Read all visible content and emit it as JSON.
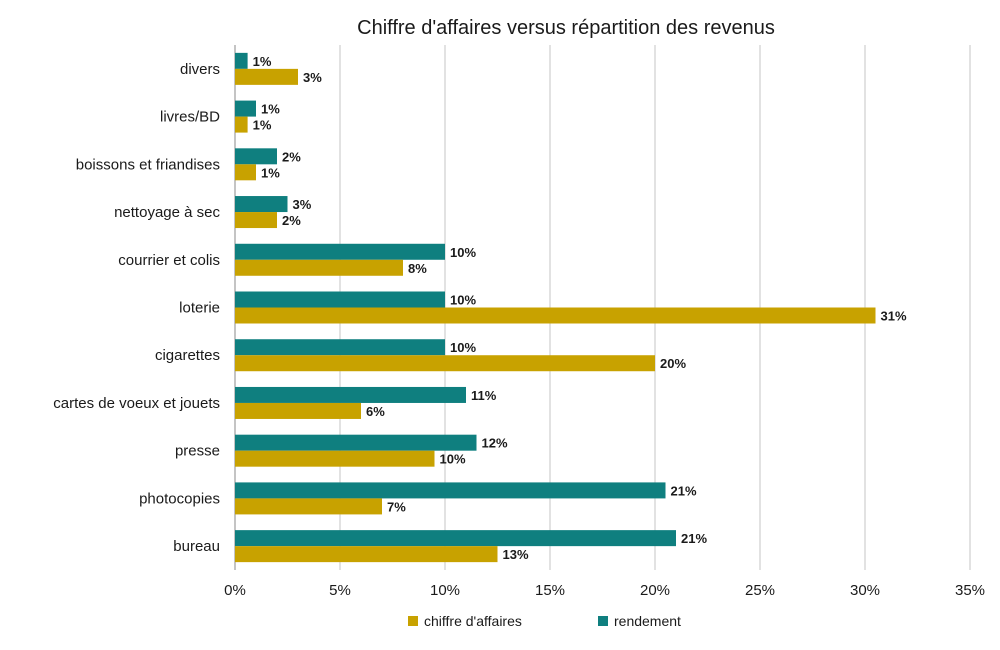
{
  "chart_data": {
    "type": "bar",
    "orientation": "horizontal",
    "title": "Chiffre d'affaires versus répartition des revenus",
    "categories": [
      "divers",
      "livres/BD",
      "boissons et friandises",
      "nettoyage à sec",
      "courrier et colis",
      "loterie",
      "cigarettes",
      "cartes de voeux et jouets",
      "presse",
      "photocopies",
      "bureau"
    ],
    "series": [
      {
        "name": "rendement",
        "color": "#0f7f7f",
        "values": [
          1,
          1,
          2,
          3,
          10,
          10,
          10,
          11,
          12,
          21,
          21
        ],
        "bar_lengths": [
          0.6,
          1.0,
          2.0,
          2.5,
          10.0,
          10.0,
          10.0,
          11.0,
          11.5,
          20.5,
          21.0
        ]
      },
      {
        "name": "chiffre d'affaires",
        "color": "#c8a200",
        "values": [
          3,
          1,
          1,
          2,
          8,
          31,
          20,
          6,
          10,
          7,
          13
        ],
        "bar_lengths": [
          3.0,
          0.6,
          1.0,
          2.0,
          8.0,
          30.5,
          20.0,
          6.0,
          9.5,
          7.0,
          12.5
        ]
      }
    ],
    "xlim": [
      0,
      35
    ],
    "xticks": [
      0,
      5,
      10,
      15,
      20,
      25,
      30,
      35
    ],
    "tick_format": "%",
    "value_suffix": "%",
    "grid": "vertical",
    "legend_position": "bottom",
    "legend": [
      "chiffre d'affaires",
      "rendement"
    ]
  }
}
